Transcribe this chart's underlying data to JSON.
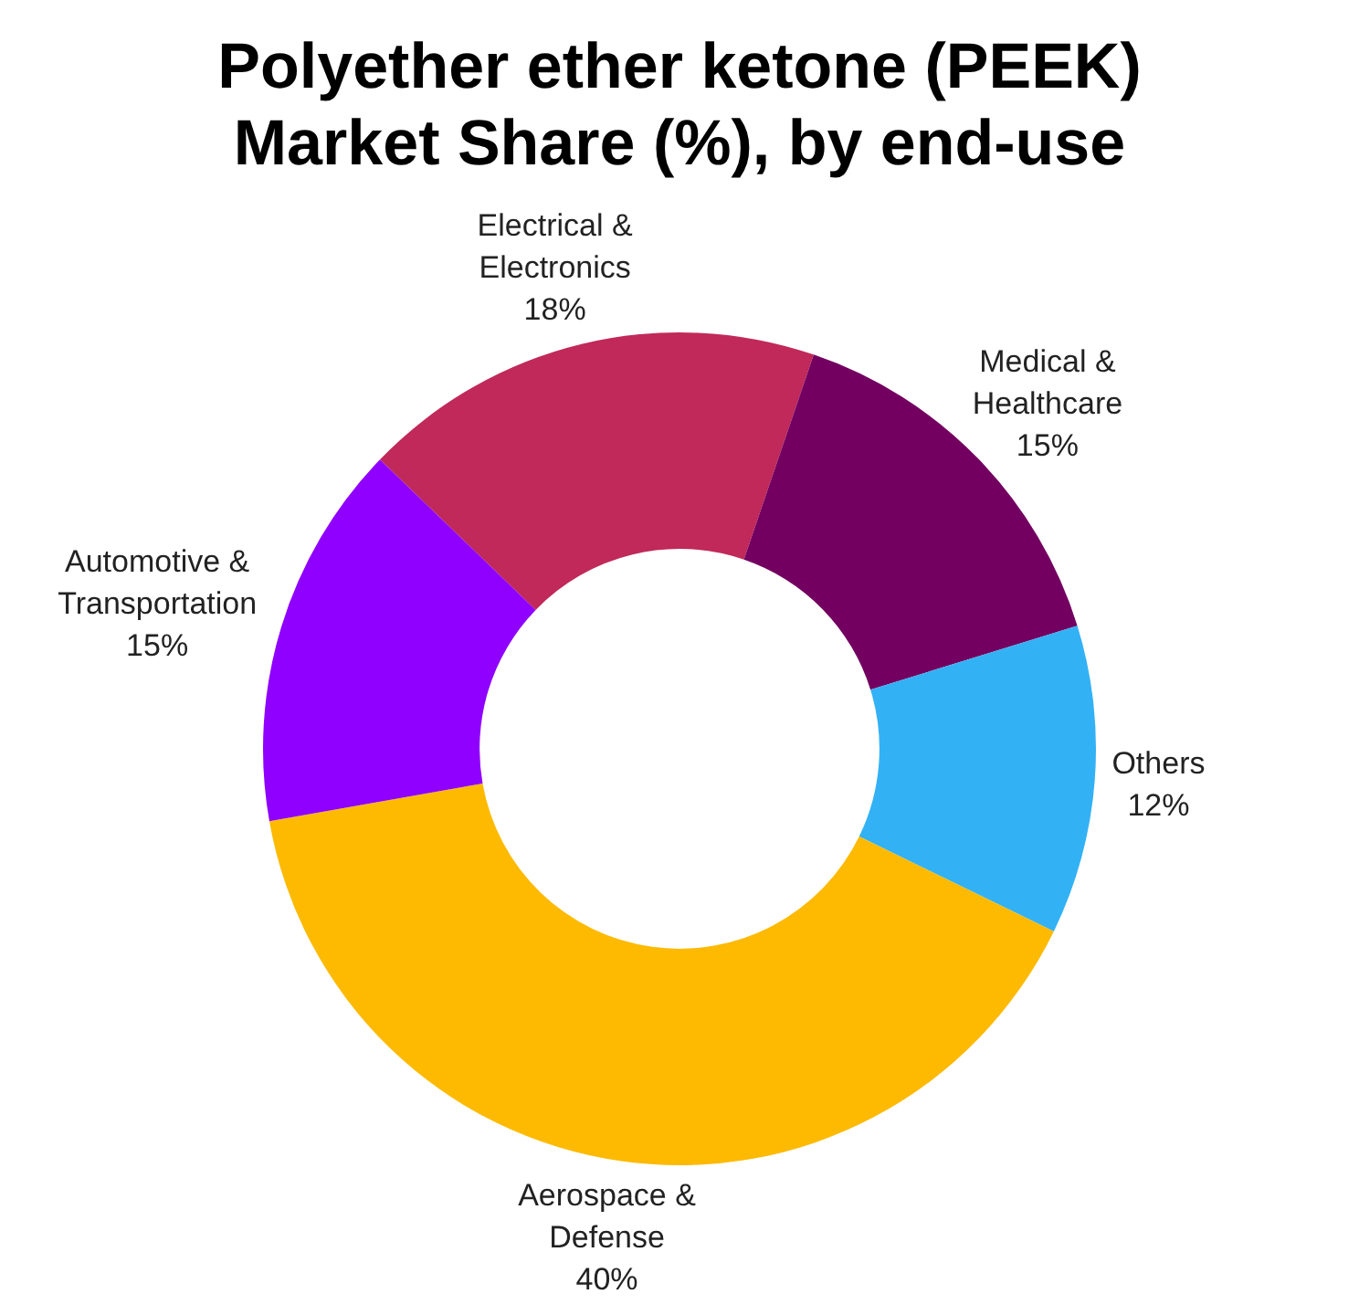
{
  "chart_data": {
    "type": "donut",
    "title": "Polyether ether ketone (PEEK) Market Share (%), by end-use",
    "categories": [
      "Electrical & Electronics",
      "Medical & Healthcare",
      "Others",
      "Aerospace & Defense",
      "Automotive & Transportation"
    ],
    "values": [
      18,
      15,
      12,
      40,
      15
    ],
    "value_labels": [
      "18%",
      "15%",
      "12%",
      "40%",
      "15%"
    ],
    "colors": [
      "#c0295a",
      "#730060",
      "#33b1f5",
      "#fdba00",
      "#8f00ff"
    ],
    "legend": false
  }
}
